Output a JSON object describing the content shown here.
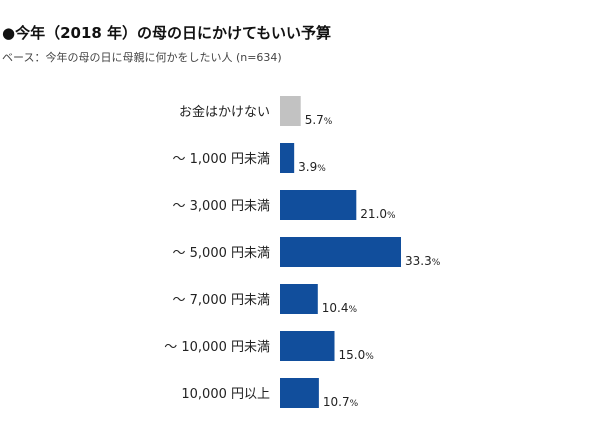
{
  "chart_data": {
    "type": "bar",
    "orientation": "horizontal",
    "title": "●今年（2018 年）の母の日にかけてもいい予算",
    "subtitle": "ベース：今年の母の日に母親に何かをしたい人 (n=634)",
    "unit": "%",
    "categories": [
      "お金はかけない",
      "～ 1,000 円未満",
      "～ 3,000 円未満",
      "～ 5,000 円未満",
      "～ 7,000 円未満",
      "～ 10,000 円未満",
      "10,000 円以上"
    ],
    "values": [
      5.7,
      3.9,
      21.0,
      33.3,
      10.4,
      15.0,
      10.7
    ],
    "value_labels": [
      "5.7",
      "3.9",
      "21.0",
      "33.3",
      "10.4",
      "15.0",
      "10.7"
    ],
    "bar_colors": [
      "#c2c2c2",
      "#114e9c",
      "#114e9c",
      "#114e9c",
      "#114e9c",
      "#114e9c",
      "#114e9c"
    ],
    "xlim": [
      0,
      33.3
    ],
    "grid": false,
    "legend": "none"
  }
}
